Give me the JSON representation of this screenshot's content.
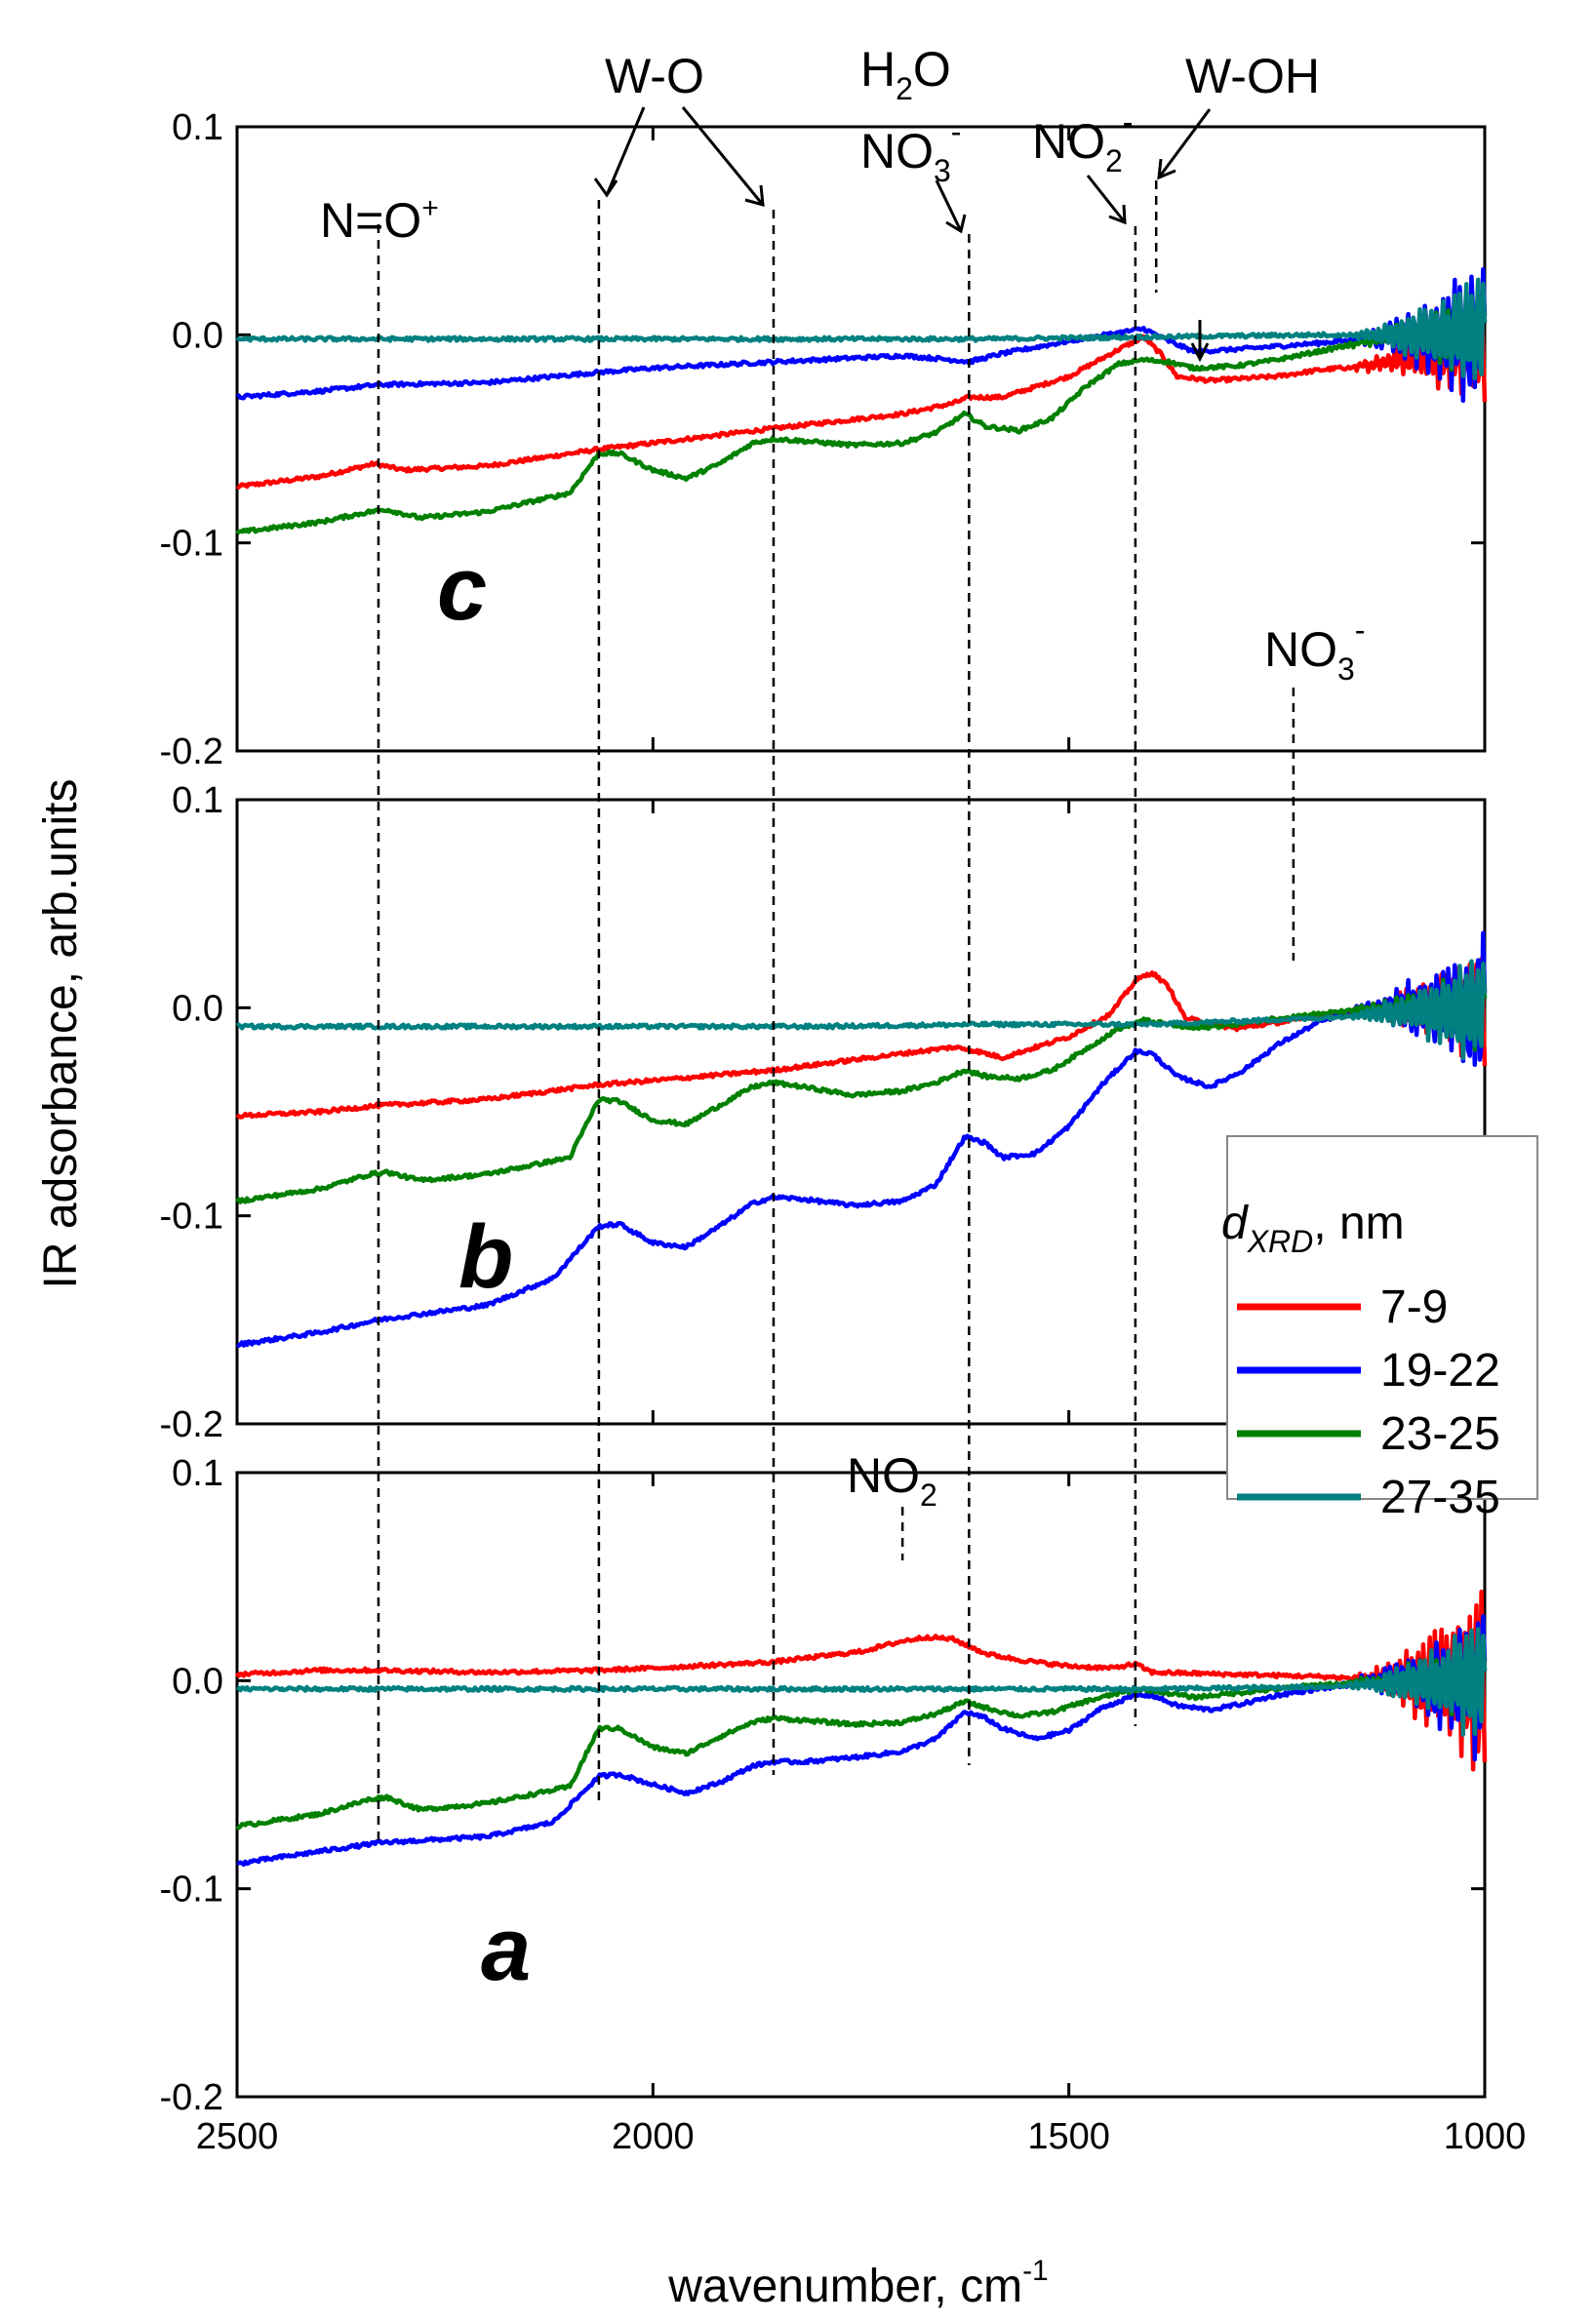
{
  "chart_data": {
    "type": "line",
    "xlabel": "wavenumber, cm",
    "xlabel_sup": "-1",
    "ylabel": "IR adsorbance, arb.units",
    "xlim": [
      2500,
      1000
    ],
    "ylim": [
      -0.2,
      0.1
    ],
    "x_ticks": [
      2500,
      2000,
      1500,
      1000
    ],
    "x_tick_labels": [
      "2500",
      "2000",
      "1500",
      "1000"
    ],
    "y_ticks": [
      0.1,
      0.0,
      -0.1,
      -0.2
    ],
    "y_tick_labels": [
      "0.1",
      "0.0",
      "-0.1",
      "-0.2"
    ],
    "legend": {
      "title_main": "d",
      "title_sub": "XRD",
      "title_rest": ", nm",
      "entries": [
        {
          "name": "7-9",
          "color": "#ff0000"
        },
        {
          "name": "19-22",
          "color": "#0000ff"
        },
        {
          "name": "23-25",
          "color": "#008000"
        },
        {
          "name": "27-35",
          "color": "#008080"
        }
      ]
    },
    "guides": [
      {
        "id": "nop",
        "x": 2330,
        "from_panel": "c",
        "to_panel": "a"
      },
      {
        "id": "wo1",
        "x": 2065,
        "from_panel": "c",
        "to_panel": "a"
      },
      {
        "id": "wo2",
        "x": 1855,
        "from_panel": "c",
        "to_panel": "a"
      },
      {
        "id": "no3",
        "x": 1620,
        "from_panel": "c",
        "to_panel": "a"
      },
      {
        "id": "no2m",
        "x": 1420,
        "from_panel": "c",
        "to_panel": "a"
      },
      {
        "id": "woh",
        "x": 1395,
        "from_panel": "c",
        "to_panel": "c"
      },
      {
        "id": "no3b",
        "x": 1230,
        "from_panel": "b",
        "to_panel": "b"
      }
    ],
    "annotations": [
      {
        "id": "nop",
        "main": "N=O",
        "sup": "+",
        "sub": "",
        "sup2": ""
      },
      {
        "id": "wo",
        "main": "W-O",
        "sup": "",
        "sub": "",
        "sup2": ""
      },
      {
        "id": "h2o",
        "main": "H",
        "sub": "2",
        "rest": "O"
      },
      {
        "id": "no3c",
        "main": "NO",
        "sub": "3",
        "sup": "-"
      },
      {
        "id": "no2c",
        "main": "NO",
        "sub": "2",
        "sup": "-"
      },
      {
        "id": "woh",
        "main": "W-OH"
      },
      {
        "id": "no3b",
        "main": "NO",
        "sub": "3",
        "sup": "-"
      },
      {
        "id": "no2a",
        "main": "NO",
        "sub": "2"
      }
    ],
    "panels": [
      {
        "label": "c",
        "series": [
          {
            "name": "7-9",
            "color": "#ff0000",
            "noise": 0.028,
            "x": [
              2500,
              2400,
              2335,
              2300,
              2200,
              2065,
              2000,
              1855,
              1700,
              1640,
              1620,
              1580,
              1500,
              1440,
              1410,
              1390,
              1370,
              1330,
              1250,
              1200,
              1150,
              1100,
              1000
            ],
            "y": [
              -0.073,
              -0.068,
              -0.062,
              -0.065,
              -0.063,
              -0.055,
              -0.052,
              -0.045,
              -0.038,
              -0.033,
              -0.03,
              -0.03,
              -0.02,
              -0.007,
              -0.001,
              -0.009,
              -0.02,
              -0.022,
              -0.02,
              -0.017,
              -0.015,
              -0.012,
              -0.005
            ]
          },
          {
            "name": "19-22",
            "color": "#0000ff",
            "noise": 0.04,
            "x": [
              2500,
              2400,
              2330,
              2200,
              2065,
              2000,
              1855,
              1700,
              1640,
              1620,
              1580,
              1500,
              1440,
              1410,
              1380,
              1350,
              1300,
              1200,
              1100,
              1000
            ],
            "y": [
              -0.03,
              -0.027,
              -0.024,
              -0.023,
              -0.018,
              -0.016,
              -0.013,
              -0.01,
              -0.012,
              -0.013,
              -0.009,
              -0.003,
              0.001,
              0.003,
              -0.003,
              -0.008,
              -0.007,
              -0.004,
              0.0,
              0.0
            ]
          },
          {
            "name": "23-25",
            "color": "#008000",
            "noise": 0.024,
            "x": [
              2500,
              2400,
              2340,
              2320,
              2300,
              2280,
              2200,
              2100,
              2065,
              2040,
              2000,
              1960,
              1920,
              1880,
              1855,
              1820,
              1760,
              1700,
              1660,
              1625,
              1600,
              1560,
              1520,
              1480,
              1440,
              1410,
              1380,
              1350,
              1300,
              1250,
              1200,
              1150,
              1100,
              1000
            ],
            "y": [
              -0.095,
              -0.09,
              -0.085,
              -0.084,
              -0.086,
              -0.088,
              -0.085,
              -0.076,
              -0.057,
              -0.057,
              -0.065,
              -0.069,
              -0.062,
              -0.052,
              -0.05,
              -0.051,
              -0.053,
              -0.052,
              -0.047,
              -0.038,
              -0.044,
              -0.046,
              -0.04,
              -0.025,
              -0.014,
              -0.012,
              -0.013,
              -0.016,
              -0.015,
              -0.012,
              -0.008,
              -0.004,
              0.0,
              0.0
            ]
          },
          {
            "name": "27-35",
            "color": "#008080",
            "noise": 0.032,
            "x": [
              2500,
              2400,
              2200,
              2000,
              1800,
              1600,
              1400,
              1200,
              1100,
              1000
            ],
            "y": [
              -0.002,
              -0.002,
              -0.002,
              -0.002,
              -0.002,
              -0.002,
              -0.001,
              0.0,
              0.0,
              0.0
            ]
          }
        ]
      },
      {
        "label": "b",
        "series": [
          {
            "name": "7-9",
            "color": "#ff0000",
            "noise": 0.03,
            "x": [
              2500,
              2400,
              2330,
              2200,
              2065,
              2000,
              1855,
              1700,
              1640,
              1620,
              1580,
              1500,
              1450,
              1420,
              1400,
              1380,
              1360,
              1300,
              1230,
              1200,
              1100,
              1000
            ],
            "y": [
              -0.052,
              -0.05,
              -0.047,
              -0.044,
              -0.037,
              -0.035,
              -0.03,
              -0.022,
              -0.019,
              -0.02,
              -0.024,
              -0.014,
              -0.003,
              0.013,
              0.017,
              0.01,
              -0.005,
              -0.01,
              -0.006,
              -0.004,
              0.0,
              0.0
            ]
          },
          {
            "name": "19-22",
            "color": "#0000ff",
            "noise": 0.04,
            "x": [
              2500,
              2400,
              2330,
              2200,
              2120,
              2065,
              2040,
              2000,
              1960,
              1920,
              1880,
              1855,
              1820,
              1760,
              1700,
              1660,
              1625,
              1600,
              1580,
              1540,
              1500,
              1460,
              1420,
              1400,
              1370,
              1330,
              1290,
              1250,
              1200,
              1150,
              1100,
              1000
            ],
            "y": [
              -0.162,
              -0.156,
              -0.15,
              -0.143,
              -0.13,
              -0.105,
              -0.104,
              -0.113,
              -0.115,
              -0.105,
              -0.094,
              -0.091,
              -0.092,
              -0.095,
              -0.093,
              -0.085,
              -0.062,
              -0.065,
              -0.072,
              -0.07,
              -0.057,
              -0.037,
              -0.021,
              -0.022,
              -0.033,
              -0.038,
              -0.03,
              -0.018,
              -0.007,
              0.0,
              0.0,
              0.0
            ]
          },
          {
            "name": "23-25",
            "color": "#008000",
            "noise": 0.024,
            "x": [
              2500,
              2400,
              2340,
              2320,
              2300,
              2280,
              2200,
              2100,
              2065,
              2040,
              2000,
              1960,
              1920,
              1880,
              1855,
              1820,
              1760,
              1700,
              1660,
              1625,
              1600,
              1560,
              1520,
              1480,
              1440,
              1410,
              1380,
              1350,
              1300,
              1250,
              1200,
              1150,
              1100,
              1000
            ],
            "y": [
              -0.093,
              -0.087,
              -0.08,
              -0.079,
              -0.081,
              -0.083,
              -0.08,
              -0.072,
              -0.044,
              -0.045,
              -0.054,
              -0.056,
              -0.047,
              -0.038,
              -0.036,
              -0.038,
              -0.042,
              -0.04,
              -0.036,
              -0.03,
              -0.033,
              -0.034,
              -0.03,
              -0.02,
              -0.01,
              -0.006,
              -0.008,
              -0.01,
              -0.008,
              -0.005,
              -0.003,
              -0.001,
              0.0,
              0.0
            ]
          },
          {
            "name": "27-35",
            "color": "#008080",
            "noise": 0.03,
            "x": [
              2500,
              2400,
              2200,
              2000,
              1800,
              1600,
              1400,
              1200,
              1100,
              1000
            ],
            "y": [
              -0.009,
              -0.009,
              -0.009,
              -0.009,
              -0.009,
              -0.008,
              -0.008,
              -0.005,
              -0.002,
              0.0
            ]
          }
        ]
      },
      {
        "label": "a",
        "series": [
          {
            "name": "7-9",
            "color": "#ff0000",
            "noise": 0.048,
            "x": [
              2500,
              2400,
              2330,
              2200,
              2065,
              2000,
              1855,
              1750,
              1700,
              1670,
              1640,
              1600,
              1560,
              1500,
              1450,
              1420,
              1400,
              1300,
              1200,
              1100,
              1000
            ],
            "y": [
              0.003,
              0.005,
              0.005,
              0.004,
              0.005,
              0.006,
              0.009,
              0.014,
              0.019,
              0.021,
              0.02,
              0.013,
              0.01,
              0.007,
              0.006,
              0.008,
              0.004,
              0.003,
              0.002,
              0.0,
              0.0
            ]
          },
          {
            "name": "19-22",
            "color": "#0000ff",
            "noise": 0.04,
            "x": [
              2500,
              2400,
              2330,
              2200,
              2120,
              2065,
              2040,
              2000,
              1960,
              1920,
              1880,
              1855,
              1820,
              1760,
              1700,
              1660,
              1625,
              1600,
              1580,
              1540,
              1500,
              1460,
              1420,
              1400,
              1370,
              1330,
              1290,
              1250,
              1200,
              1150,
              1100,
              1000
            ],
            "y": [
              -0.088,
              -0.082,
              -0.078,
              -0.075,
              -0.068,
              -0.046,
              -0.045,
              -0.05,
              -0.054,
              -0.049,
              -0.041,
              -0.039,
              -0.039,
              -0.037,
              -0.034,
              -0.028,
              -0.015,
              -0.018,
              -0.023,
              -0.028,
              -0.024,
              -0.013,
              -0.007,
              -0.007,
              -0.012,
              -0.014,
              -0.011,
              -0.007,
              -0.004,
              -0.001,
              0.0,
              0.0
            ]
          },
          {
            "name": "23-25",
            "color": "#008000",
            "noise": 0.024,
            "x": [
              2500,
              2400,
              2340,
              2320,
              2300,
              2280,
              2200,
              2100,
              2065,
              2040,
              2000,
              1960,
              1920,
              1880,
              1855,
              1820,
              1760,
              1700,
              1660,
              1625,
              1600,
              1560,
              1520,
              1480,
              1440,
              1410,
              1380,
              1350,
              1300,
              1250,
              1200,
              1150,
              1100,
              1000
            ],
            "y": [
              -0.07,
              -0.064,
              -0.057,
              -0.056,
              -0.059,
              -0.062,
              -0.059,
              -0.051,
              -0.023,
              -0.023,
              -0.032,
              -0.035,
              -0.027,
              -0.02,
              -0.018,
              -0.019,
              -0.021,
              -0.02,
              -0.016,
              -0.01,
              -0.013,
              -0.017,
              -0.015,
              -0.01,
              -0.006,
              -0.004,
              -0.006,
              -0.008,
              -0.006,
              -0.004,
              -0.002,
              -0.001,
              0.0,
              0.0
            ]
          },
          {
            "name": "27-35",
            "color": "#008080",
            "noise": 0.032,
            "x": [
              2500,
              2400,
              2200,
              2000,
              1800,
              1600,
              1400,
              1200,
              1100,
              1000
            ],
            "y": [
              -0.004,
              -0.004,
              -0.004,
              -0.004,
              -0.004,
              -0.004,
              -0.004,
              -0.003,
              -0.001,
              0.0
            ]
          }
        ]
      }
    ]
  }
}
